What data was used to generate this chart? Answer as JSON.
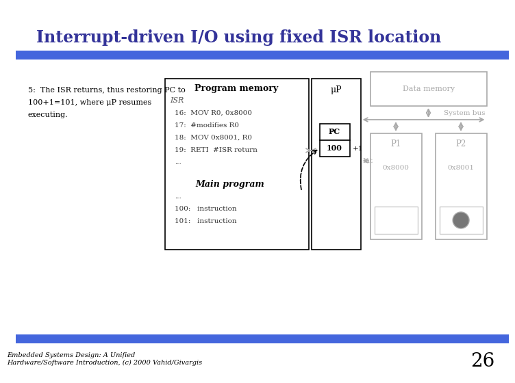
{
  "title": "Interrupt-driven I/O using fixed ISR location",
  "title_color": "#333399",
  "title_bar_color": "#4466dd",
  "bg_color": "#ffffff",
  "left_text_lines": [
    "5:  The ISR returns, thus restoring PC to",
    "100+1=101, where μP resumes",
    "executing."
  ],
  "prog_mem_title": "Program memory",
  "isr_label": "ISR",
  "isr_lines": [
    "16:  MOV R0, 0x8000",
    "17:  #modifies R0",
    "18:  MOV 0x8001, R0",
    "19:  RETI  #ISR return",
    "..."
  ],
  "main_prog_label": "Main program",
  "main_lines": [
    "...",
    "100:   instruction",
    "101:   instruction"
  ],
  "up_label": "μP",
  "pc_label": "PC",
  "pc_value": "100",
  "data_mem_label": "Data memory",
  "p1_label": "P1",
  "p1_addr": "0x8000",
  "p2_label": "P2",
  "p2_addr": "0x8001",
  "sys_bus_label": "System bus",
  "int_label": "Int",
  "plus1_label": "+1",
  "footer_text": "Embedded Systems Design: A Unified\nHardware/Software Introduction, (c) 2000 Vahid/Givargis",
  "page_number": "26",
  "gray_color": "#aaaaaa",
  "dark_gray": "#777777",
  "light_gray": "#cccccc"
}
